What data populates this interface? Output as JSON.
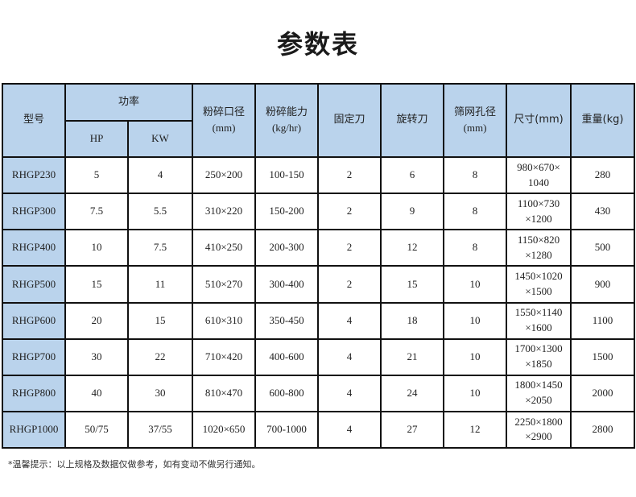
{
  "title": "参数表",
  "headers": {
    "model": "型号",
    "power": "功率",
    "hp": "HP",
    "kw": "KW",
    "inlet": "粉碎口径",
    "inlet_unit": "(mm)",
    "capacity": "粉碎能力",
    "capacity_unit": "(kg/hr)",
    "fixed_blade": "固定刀",
    "rotary_blade": "旋转刀",
    "screen": "筛网孔径",
    "screen_unit": "(mm)",
    "size": "尺寸(mm)",
    "weight": "重量(kg)"
  },
  "rows": [
    {
      "model": "RHGP230",
      "hp": "5",
      "kw": "4",
      "inlet": "250×200",
      "capacity": "100-150",
      "fixed": "2",
      "rotary": "6",
      "screen": "8",
      "size1": "980×670×",
      "size2": "1040",
      "weight": "280"
    },
    {
      "model": "RHGP300",
      "hp": "7.5",
      "kw": "5.5",
      "inlet": "310×220",
      "capacity": "150-200",
      "fixed": "2",
      "rotary": "9",
      "screen": "8",
      "size1": "1100×730",
      "size2": "×1200",
      "weight": "430"
    },
    {
      "model": "RHGP400",
      "hp": "10",
      "kw": "7.5",
      "inlet": "410×250",
      "capacity": "200-300",
      "fixed": "2",
      "rotary": "12",
      "screen": "8",
      "size1": "1150×820",
      "size2": "×1280",
      "weight": "500"
    },
    {
      "model": "RHGP500",
      "hp": "15",
      "kw": "11",
      "inlet": "510×270",
      "capacity": "300-400",
      "fixed": "2",
      "rotary": "15",
      "screen": "10",
      "size1": "1450×1020",
      "size2": "×1500",
      "weight": "900"
    },
    {
      "model": "RHGP600",
      "hp": "20",
      "kw": "15",
      "inlet": "610×310",
      "capacity": "350-450",
      "fixed": "4",
      "rotary": "18",
      "screen": "10",
      "size1": "1550×1140",
      "size2": "×1600",
      "weight": "1100"
    },
    {
      "model": "RHGP700",
      "hp": "30",
      "kw": "22",
      "inlet": "710×420",
      "capacity": "400-600",
      "fixed": "4",
      "rotary": "21",
      "screen": "10",
      "size1": "1700×1300",
      "size2": "×1850",
      "weight": "1500"
    },
    {
      "model": "RHGP800",
      "hp": "40",
      "kw": "30",
      "inlet": "810×470",
      "capacity": "600-800",
      "fixed": "4",
      "rotary": "24",
      "screen": "10",
      "size1": "1800×1450",
      "size2": "×2050",
      "weight": "2000"
    },
    {
      "model": "RHGP1000",
      "hp": "50/75",
      "kw": "37/55",
      "inlet": "1020×650",
      "capacity": "700-1000",
      "fixed": "4",
      "rotary": "27",
      "screen": "12",
      "size1": "2250×1800",
      "size2": "×2900",
      "weight": "2800"
    }
  ],
  "note": "*温馨提示：以上规格及数据仅做参考，如有变动不做另行通知。",
  "colors": {
    "header_bg": "#bad3ec",
    "border": "#111111"
  }
}
